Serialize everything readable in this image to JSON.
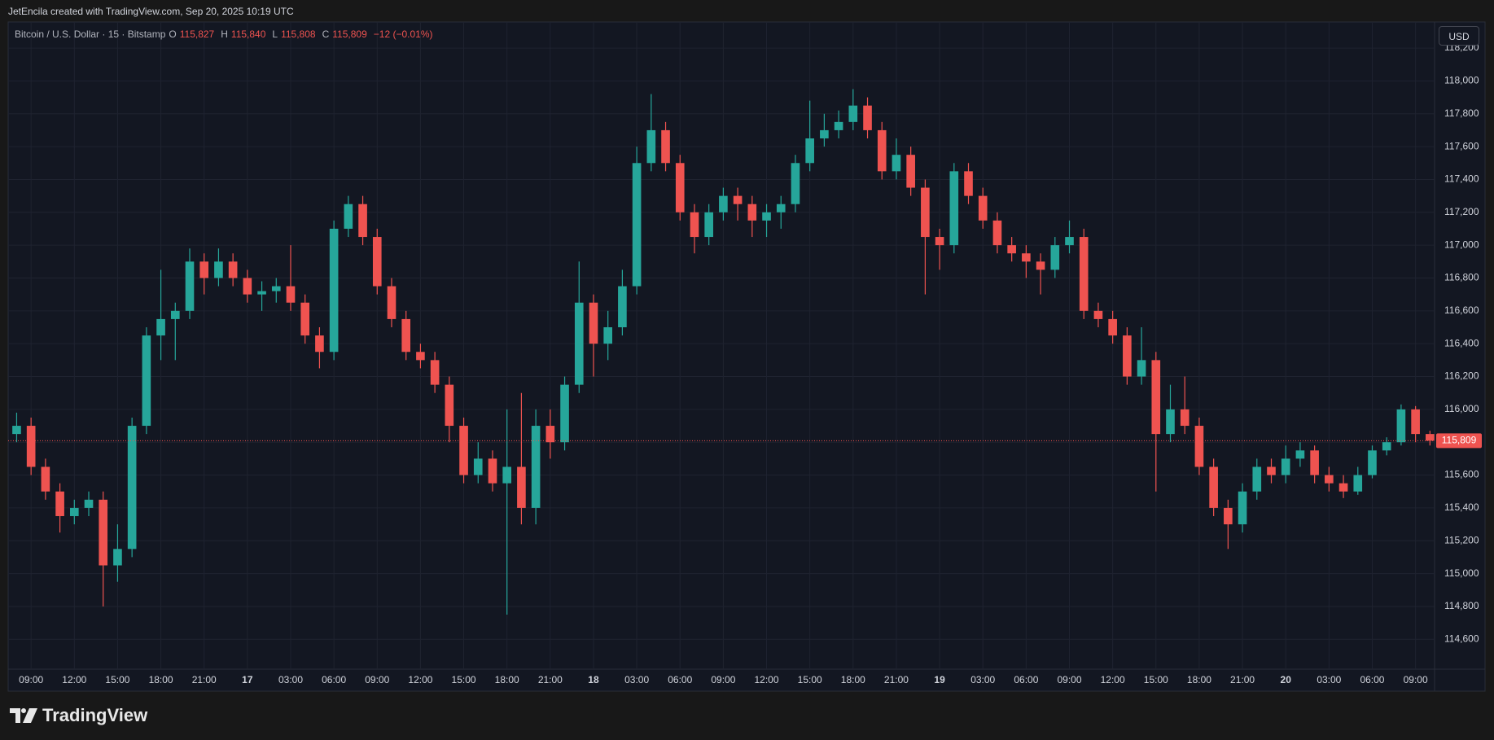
{
  "header": {
    "attribution": "JetEncila created with TradingView.com, Sep 20, 2025 10:19 UTC"
  },
  "footer": {
    "logo": "TradingView"
  },
  "chart_data": {
    "type": "candlestick",
    "title": "Bitcoin / U.S. Dollar · 15 · Bitstamp",
    "legend": [
      {
        "label": "O",
        "value": "115,827"
      },
      {
        "label": "H",
        "value": "115,840"
      },
      {
        "label": "L",
        "value": "115,808"
      },
      {
        "label": "C",
        "value": "115,809"
      }
    ],
    "change": "−12 (−0.01%)",
    "currency": "USD",
    "last_price": 115809,
    "last_price_label": "115,809",
    "up_color": "#26a69a",
    "down_color": "#ef5350",
    "grid": true,
    "x": [
      8,
      9,
      10,
      11,
      12,
      13,
      14,
      15,
      16,
      17,
      18,
      19,
      20,
      21,
      22,
      23,
      24,
      25,
      26,
      27,
      28,
      29,
      30,
      31,
      32,
      33,
      34,
      35,
      36,
      37,
      38,
      39,
      40,
      41,
      42,
      43,
      44,
      45,
      46,
      47,
      48,
      49,
      50,
      51,
      52,
      53,
      54,
      55,
      56,
      57,
      58,
      59,
      60,
      61,
      62,
      63,
      64,
      65,
      66,
      67,
      68,
      69,
      70,
      71,
      72,
      73,
      74,
      75,
      76,
      77,
      78,
      79,
      80,
      81,
      82,
      83,
      84,
      85,
      86,
      87,
      88,
      89,
      90,
      91,
      92,
      93,
      94,
      95,
      96,
      97,
      98,
      99,
      100,
      101,
      102,
      103,
      104,
      105,
      106
    ],
    "open": [
      115850,
      115900,
      115650,
      115500,
      115350,
      115400,
      115450,
      115050,
      115150,
      115900,
      116450,
      116550,
      116600,
      116900,
      116800,
      116900,
      116800,
      116700,
      116720,
      116750,
      116650,
      116450,
      116350,
      117100,
      117250,
      117050,
      116750,
      116550,
      116350,
      116300,
      116150,
      115900,
      115600,
      115700,
      115550,
      115650,
      115400,
      115900,
      115800,
      116150,
      116650,
      116400,
      116500,
      116750,
      117500,
      117700,
      117500,
      117200,
      117050,
      117200,
      117300,
      117250,
      117150,
      117200,
      117250,
      117500,
      117650,
      117700,
      117750,
      117850,
      117700,
      117450,
      117550,
      117350,
      117050,
      117000,
      117450,
      117300,
      117150,
      117000,
      116950,
      116900,
      116850,
      117000,
      117050,
      116600,
      116550,
      116450,
      116200,
      116300,
      115850,
      116000,
      115900,
      115650,
      115400,
      115300,
      115500,
      115650,
      115600,
      115700,
      115750,
      115600,
      115550,
      115500,
      115600,
      115750,
      115800,
      116000,
      115850
    ],
    "high": [
      115980,
      115950,
      115700,
      115550,
      115450,
      115500,
      115500,
      115300,
      115950,
      116500,
      116850,
      116650,
      116980,
      116950,
      116980,
      116950,
      116850,
      116780,
      116800,
      117000,
      116700,
      116500,
      117150,
      117300,
      117300,
      117100,
      116800,
      116600,
      116400,
      116350,
      116200,
      115950,
      115800,
      115750,
      116000,
      116100,
      116000,
      116000,
      116200,
      116900,
      116700,
      116600,
      116850,
      117600,
      117920,
      117750,
      117550,
      117250,
      117250,
      117350,
      117350,
      117300,
      117250,
      117300,
      117550,
      117880,
      117800,
      117820,
      117950,
      117900,
      117750,
      117650,
      117600,
      117400,
      117100,
      117500,
      117500,
      117350,
      117200,
      117050,
      117000,
      116950,
      117050,
      117150,
      117100,
      116650,
      116600,
      116500,
      116500,
      116350,
      116150,
      116200,
      115950,
      115700,
      115450,
      115550,
      115700,
      115700,
      115780,
      115800,
      115780,
      115650,
      115600,
      115650,
      115780,
      115830,
      116030,
      116020,
      115870
    ],
    "low": [
      115800,
      115600,
      115450,
      115250,
      115300,
      115350,
      114800,
      114950,
      115100,
      115850,
      116300,
      116300,
      116550,
      116700,
      116750,
      116750,
      116650,
      116600,
      116650,
      116600,
      116400,
      116250,
      116300,
      117050,
      117000,
      116700,
      116500,
      116300,
      116250,
      116100,
      115800,
      115550,
      115550,
      115500,
      114750,
      115300,
      115300,
      115700,
      115750,
      116100,
      116200,
      116300,
      116450,
      116700,
      117450,
      117450,
      117150,
      116950,
      117000,
      117150,
      117150,
      117050,
      117050,
      117100,
      117200,
      117450,
      117600,
      117650,
      117700,
      117650,
      117400,
      117400,
      117300,
      116700,
      116850,
      116950,
      117250,
      117100,
      116950,
      116900,
      116800,
      116700,
      116800,
      116950,
      116550,
      116500,
      116400,
      116150,
      116150,
      115500,
      115800,
      115850,
      115600,
      115350,
      115150,
      115250,
      115450,
      115550,
      115550,
      115650,
      115550,
      115500,
      115460,
      115480,
      115580,
      115720,
      115780,
      115800,
      115780
    ],
    "close": [
      115900,
      115650,
      115500,
      115350,
      115400,
      115450,
      115050,
      115150,
      115900,
      116450,
      116550,
      116600,
      116900,
      116800,
      116900,
      116800,
      116700,
      116720,
      116750,
      116650,
      116450,
      116350,
      117100,
      117250,
      117050,
      116750,
      116550,
      116350,
      116300,
      116150,
      115900,
      115600,
      115700,
      115550,
      115650,
      115400,
      115900,
      115800,
      116150,
      116650,
      116400,
      116500,
      116750,
      117500,
      117700,
      117500,
      117200,
      117050,
      117200,
      117300,
      117250,
      117150,
      117200,
      117250,
      117500,
      117650,
      117700,
      117750,
      117850,
      117700,
      117450,
      117550,
      117350,
      117050,
      117000,
      117450,
      117300,
      117150,
      117000,
      116950,
      116900,
      116850,
      117000,
      117050,
      116600,
      116550,
      116450,
      116200,
      116300,
      115850,
      116000,
      115900,
      115650,
      115400,
      115300,
      115500,
      115650,
      115600,
      115700,
      115750,
      115600,
      115550,
      115500,
      115600,
      115750,
      115800,
      116000,
      115850,
      115809
    ],
    "xlim": [
      7.41,
      106.32
    ],
    "xticks": [
      {
        "value": 9,
        "label": "09:00"
      },
      {
        "value": 12,
        "label": "12:00"
      },
      {
        "value": 15,
        "label": "15:00"
      },
      {
        "value": 18,
        "label": "18:00"
      },
      {
        "value": 21,
        "label": "21:00"
      },
      {
        "value": 24,
        "label": "17"
      },
      {
        "value": 27,
        "label": "03:00"
      },
      {
        "value": 30,
        "label": "06:00"
      },
      {
        "value": 33,
        "label": "09:00"
      },
      {
        "value": 36,
        "label": "12:00"
      },
      {
        "value": 39,
        "label": "15:00"
      },
      {
        "value": 42,
        "label": "18:00"
      },
      {
        "value": 45,
        "label": "21:00"
      },
      {
        "value": 48,
        "label": "18"
      },
      {
        "value": 51,
        "label": "03:00"
      },
      {
        "value": 54,
        "label": "06:00"
      },
      {
        "value": 57,
        "label": "09:00"
      },
      {
        "value": 60,
        "label": "12:00"
      },
      {
        "value": 63,
        "label": "15:00"
      },
      {
        "value": 66,
        "label": "18:00"
      },
      {
        "value": 69,
        "label": "21:00"
      },
      {
        "value": 72,
        "label": "19"
      },
      {
        "value": 75,
        "label": "03:00"
      },
      {
        "value": 78,
        "label": "06:00"
      },
      {
        "value": 81,
        "label": "09:00"
      },
      {
        "value": 84,
        "label": "12:00"
      },
      {
        "value": 87,
        "label": "15:00"
      },
      {
        "value": 90,
        "label": "18:00"
      },
      {
        "value": 93,
        "label": "21:00"
      },
      {
        "value": 96,
        "label": "20"
      },
      {
        "value": 99,
        "label": "03:00"
      },
      {
        "value": 102,
        "label": "06:00"
      },
      {
        "value": 105,
        "label": "09:00"
      }
    ],
    "ylim": [
      114418,
      118354
    ],
    "yticks": [
      {
        "value": 114600,
        "label": "114,600"
      },
      {
        "value": 114800,
        "label": "114,800"
      },
      {
        "value": 115000,
        "label": "115,000"
      },
      {
        "value": 115200,
        "label": "115,200"
      },
      {
        "value": 115400,
        "label": "115,400"
      },
      {
        "value": 115600,
        "label": "115,600"
      },
      {
        "value": 115800,
        "label": "115,800"
      },
      {
        "value": 116000,
        "label": "116,000"
      },
      {
        "value": 116200,
        "label": "116,200"
      },
      {
        "value": 116400,
        "label": "116,400"
      },
      {
        "value": 116600,
        "label": "116,600"
      },
      {
        "value": 116800,
        "label": "116,800"
      },
      {
        "value": 117000,
        "label": "117,000"
      },
      {
        "value": 117200,
        "label": "117,200"
      },
      {
        "value": 117400,
        "label": "117,400"
      },
      {
        "value": 117600,
        "label": "117,600"
      },
      {
        "value": 117800,
        "label": "117,800"
      },
      {
        "value": 118000,
        "label": "118,000"
      },
      {
        "value": 118200,
        "label": "118,200"
      }
    ]
  }
}
